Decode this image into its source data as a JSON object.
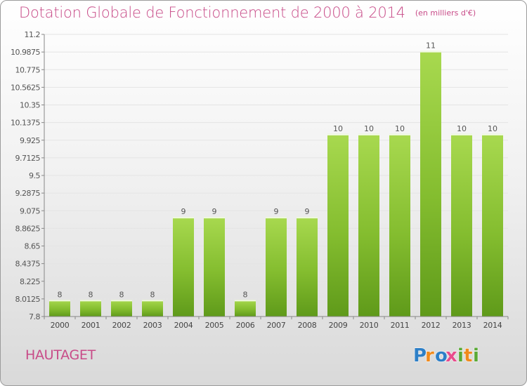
{
  "title": "Dotation Globale de Fonctionnement de 2000 à 2014",
  "unit_note": "(en milliers d'€)",
  "commune": "HAUTAGET",
  "brand": {
    "name": "Proxiti",
    "letters": [
      "P",
      "r",
      "o",
      "x",
      "i",
      "t",
      "i"
    ],
    "colors": [
      "#2d7fc7",
      "#f08a1c",
      "#2d7fc7",
      "#e84c8d",
      "#5aa936",
      "#f08a1c",
      "#5aa936"
    ]
  },
  "chart_data": {
    "type": "bar",
    "title": "Dotation Globale de Fonctionnement de 2000 à 2014",
    "subtitle": "(en milliers d'€)",
    "xlabel": "",
    "ylabel": "",
    "categories": [
      "2000",
      "2001",
      "2002",
      "2003",
      "2004",
      "2005",
      "2006",
      "2007",
      "2008",
      "2009",
      "2010",
      "2011",
      "2012",
      "2013",
      "2014"
    ],
    "values": [
      8,
      8,
      8,
      8,
      9,
      9,
      8,
      9,
      9,
      10,
      10,
      10,
      11,
      10,
      10
    ],
    "data_labels": [
      "8",
      "8",
      "8",
      "8",
      "9",
      "9",
      "8",
      "9",
      "9",
      "10",
      "10",
      "10",
      "11",
      "10",
      "10"
    ],
    "ylim": [
      7.8,
      11.2
    ],
    "yticks": [
      7.8,
      8.0125,
      8.225,
      8.4375,
      8.65,
      8.8625,
      9.075,
      9.2875,
      9.5,
      9.7125,
      9.925,
      10.1375,
      10.35,
      10.5625,
      10.775,
      10.9875,
      11.2
    ],
    "ytick_labels": [
      "7.8",
      "8.0125",
      "8.225",
      "8.4375",
      "8.65",
      "8.8625",
      "9.075",
      "9.2875",
      "9.5",
      "9.7125",
      "9.925",
      "10.1375",
      "10.35",
      "10.5625",
      "10.775",
      "10.9875",
      "11.2"
    ],
    "grid": true,
    "legend": "none",
    "bar_color": "#8cc63f",
    "bar_color_dark": "#5f9a1a",
    "title_color": "#c84b88"
  }
}
